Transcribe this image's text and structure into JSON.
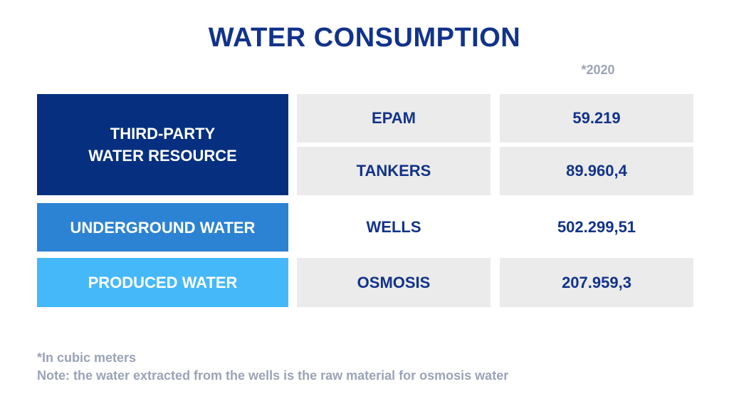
{
  "title": "WATER CONSUMPTION",
  "year_label": "*2020",
  "colors": {
    "title": "#12338a",
    "third_party": "#06307f",
    "underground": "#2c83d3",
    "produced": "#45b8fa",
    "cell_grey": "#ebebeb",
    "note": "#9aa3b8"
  },
  "chart_data": {
    "type": "table",
    "title": "WATER CONSUMPTION",
    "year": "*2020",
    "groups": [
      {
        "category_lines": [
          "THIRD-PARTY",
          "WATER RESOURCE"
        ],
        "rows": [
          {
            "source": "EPAM",
            "value": "59.219"
          },
          {
            "source": "TANKERS",
            "value": "89.960,4"
          }
        ]
      },
      {
        "category_lines": [
          "UNDERGROUND WATER"
        ],
        "rows": [
          {
            "source": "WELLS",
            "value": "502.299,51"
          }
        ]
      },
      {
        "category_lines": [
          "PRODUCED WATER"
        ],
        "rows": [
          {
            "source": "OSMOSIS",
            "value": "207.959,3"
          }
        ]
      }
    ]
  },
  "notes": {
    "unit": "*In cubic meters",
    "note": "Note: the water extracted from the wells is the raw material for osmosis water"
  }
}
